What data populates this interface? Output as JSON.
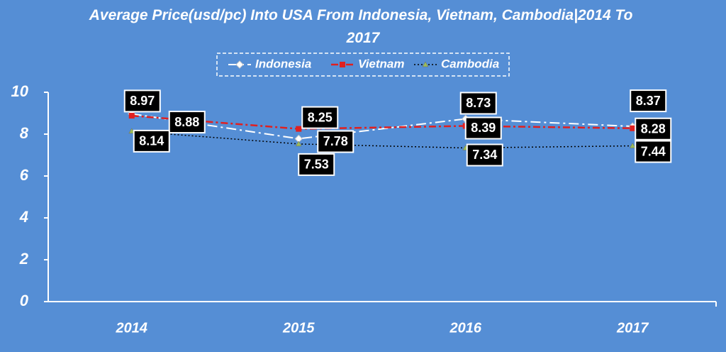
{
  "chart_data": {
    "type": "line",
    "title": "Average Price(usd/pc) Into USA From Indonesia, Vietnam, Cambodia|2014 To 2017",
    "categories": [
      "2014",
      "2015",
      "2016",
      "2017"
    ],
    "series": [
      {
        "name": "Indonesia",
        "color": "#ffffff",
        "values": [
          8.97,
          7.78,
          8.73,
          8.37
        ]
      },
      {
        "name": "Vietnam",
        "color": "#e02020",
        "values": [
          8.88,
          8.25,
          8.39,
          8.28
        ]
      },
      {
        "name": "Cambodia",
        "color": "#000000",
        "values": [
          8.14,
          7.53,
          7.34,
          7.44
        ]
      }
    ],
    "ylim": [
      0,
      10
    ],
    "yticks": [
      0,
      2,
      4,
      6,
      8,
      10
    ]
  }
}
